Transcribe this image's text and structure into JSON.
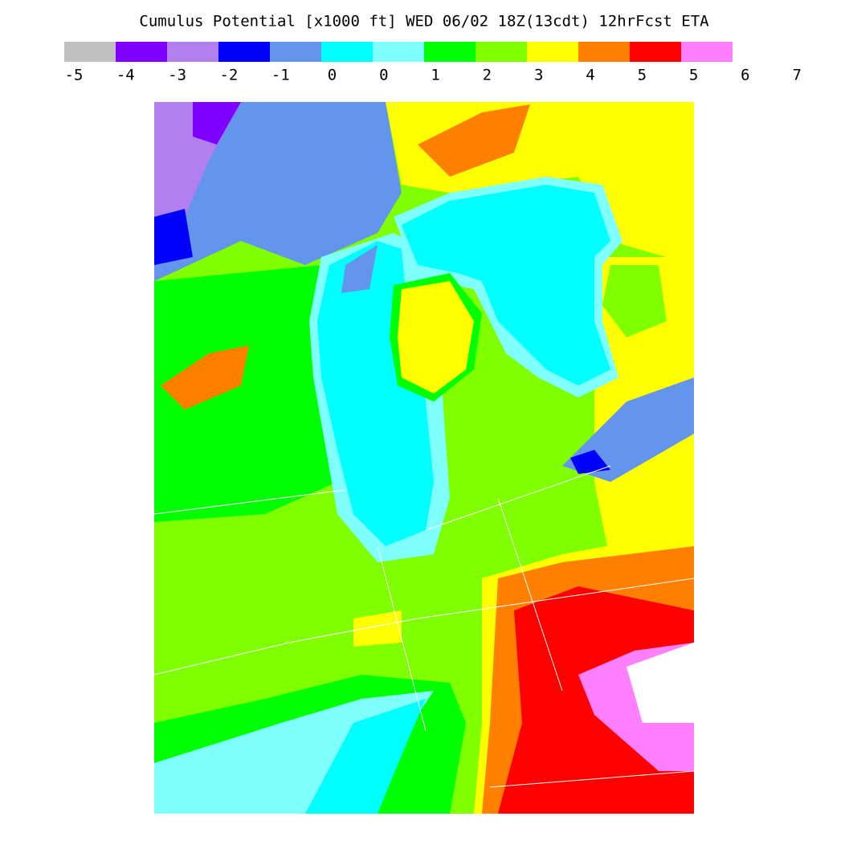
{
  "title": "Cumulus Potential [x1000 ft]  WED 06/02 18Z(13cdt) 12hrFcst ETA",
  "colorbar": {
    "colors": [
      "#c0c0c0",
      "#8000ff",
      "#b07ff0",
      "#0000ff",
      "#6495ed",
      "#00ffff",
      "#80ffff",
      "#00ff00",
      "#80ff00",
      "#ffff00",
      "#ff8000",
      "#ff0000",
      "#ff80ff"
    ],
    "labels": [
      "-5",
      "-4",
      "-3",
      "-2",
      "-1",
      "0",
      "0",
      "1",
      "2",
      "3",
      "4",
      "5",
      "5",
      "6",
      "7"
    ]
  }
}
